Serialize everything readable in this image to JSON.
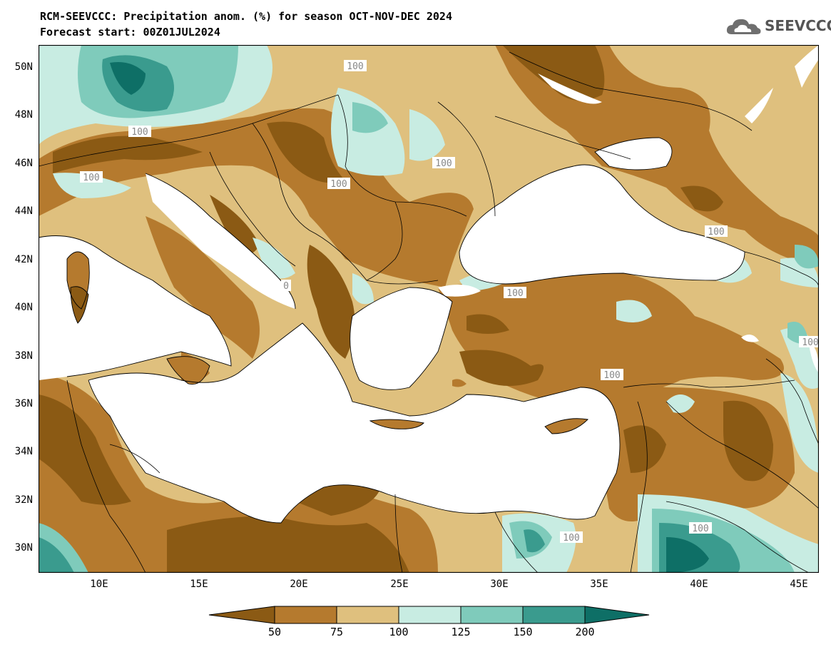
{
  "title": {
    "line1": "RCM-SEEVCCC: Precipitation anom. (%) for season OCT-NOV-DEC 2024",
    "line2": "Forecast start: 00Z01JUL2024"
  },
  "logo": {
    "text": "SEEVCCC",
    "icon": "cloud-icon"
  },
  "map": {
    "region": "Southeast Europe / Eastern Mediterranean",
    "lon_range": [
      7,
      46
    ],
    "lat_range": [
      29,
      51
    ],
    "lat_ticks": [
      "50N",
      "48N",
      "46N",
      "44N",
      "42N",
      "40N",
      "38N",
      "36N",
      "34N",
      "32N",
      "30N"
    ],
    "lon_ticks": [
      "10E",
      "15E",
      "20E",
      "25E",
      "30E",
      "35E",
      "40E",
      "45E"
    ],
    "contour_labels": [
      "100",
      "100",
      "100",
      "100",
      "100",
      "100",
      "100",
      "100",
      "100",
      "100",
      "100",
      "100"
    ]
  },
  "colorbar": {
    "labels": [
      "50",
      "75",
      "100",
      "125",
      "150",
      "200"
    ],
    "colors": [
      "#8b5a14",
      "#b57a2e",
      "#dfc07e",
      "#c8ece2",
      "#7fcbbb",
      "#3a9b8e",
      "#0e6f66"
    ]
  },
  "palette": {
    "lt50": "#8b5a14",
    "50_75": "#b57a2e",
    "75_100": "#dfc07e",
    "100_125": "#c8ece2",
    "125_150": "#7fcbbb",
    "150_200": "#3a9b8e",
    "gt200": "#0e6f66",
    "sea": "#ffffff",
    "contour_100": "#a8b4b8"
  }
}
